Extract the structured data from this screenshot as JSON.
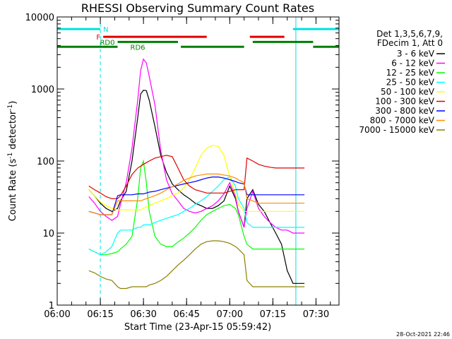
{
  "chart_data": {
    "type": "line",
    "title": "RHESSI Observing Summary Count Rates",
    "xlabel": "Start Time (23-Apr-15 05:59:42)",
    "ylabel": "Count Rate (s⁻¹ detector⁻¹)",
    "ylabel_parts": {
      "main": "Count Rate (s",
      "sup1": "-1",
      "mid": " detector",
      "sup2": "-1",
      "end": ")"
    },
    "y_scale": "log",
    "ylim": [
      1,
      10000
    ],
    "xlim_minutes": [
      0,
      98
    ],
    "x_ticks": [
      {
        "label": "06:00",
        "minute": 0
      },
      {
        "label": "06:15",
        "minute": 15
      },
      {
        "label": "06:30",
        "minute": 30
      },
      {
        "label": "06:45",
        "minute": 45
      },
      {
        "label": "07:00",
        "minute": 60
      },
      {
        "label": "07:15",
        "minute": 75
      },
      {
        "label": "07:30",
        "minute": 90
      }
    ],
    "y_ticks": [
      {
        "label": "1",
        "value": 1
      },
      {
        "label": "10",
        "value": 10
      },
      {
        "label": "100",
        "value": 100
      },
      {
        "label": "1000",
        "value": 1000
      },
      {
        "label": "10000",
        "value": 10000
      }
    ],
    "timestamp": "28-Oct-2021 22:46",
    "legend_header": [
      "Det 1,3,5,6,7,9,",
      "FDecim 1, Att 0"
    ],
    "legend_placement": "right",
    "flag_bars": [
      {
        "label": "N",
        "color": "#00e0e0",
        "level": 6800,
        "segments": [
          [
            0,
            15
          ],
          [
            82,
            98
          ]
        ]
      },
      {
        "label": "F",
        "color": "#e00000",
        "level": 5300,
        "segments": [
          [
            16,
            52
          ],
          [
            67,
            79
          ]
        ]
      },
      {
        "label": "RD0",
        "color": "#008000",
        "level": 4500,
        "segments": [
          [
            21,
            42
          ],
          [
            68,
            89
          ]
        ]
      },
      {
        "label": "RD6",
        "color": "#008000",
        "level": 3850,
        "segments": [
          [
            0,
            21
          ],
          [
            43,
            65
          ],
          [
            89,
            98
          ]
        ]
      }
    ],
    "vlines": [
      {
        "minute": 0,
        "style": "solid",
        "color": "#00e0e0"
      },
      {
        "minute": 15,
        "style": "dashed",
        "color": "#00e0e0"
      },
      {
        "minute": 83,
        "style": "solid",
        "color": "#00e0e0"
      },
      {
        "minute": 98,
        "style": "dashed",
        "color": "#00e0e0"
      }
    ],
    "series": [
      {
        "name": "3 - 6 keV",
        "color": "#000000",
        "x": [
          11,
          13,
          15,
          17,
          19,
          21,
          22,
          24,
          26,
          28,
          29,
          30,
          31,
          32,
          34,
          36,
          38,
          40,
          42,
          44,
          46,
          48,
          50,
          52,
          54,
          56,
          58,
          60,
          62,
          63,
          65,
          66,
          68,
          70,
          72,
          74,
          76,
          78,
          80,
          82,
          84,
          86
        ],
        "y": [
          40,
          33,
          26,
          22,
          20,
          22,
          28,
          38,
          100,
          400,
          850,
          960,
          950,
          700,
          300,
          120,
          70,
          48,
          40,
          34,
          30,
          26,
          24,
          22,
          22,
          24,
          28,
          45,
          30,
          20,
          12,
          30,
          40,
          25,
          20,
          14,
          10,
          7,
          3,
          2,
          2,
          2
        ]
      },
      {
        "name": "6 - 12 keV",
        "color": "#ff00ff",
        "x": [
          11,
          13,
          15,
          17,
          19,
          21,
          22,
          24,
          26,
          28,
          29,
          30,
          31,
          32,
          34,
          36,
          38,
          40,
          42,
          44,
          46,
          48,
          50,
          52,
          54,
          56,
          58,
          60,
          62,
          63,
          65,
          66,
          68,
          70,
          72,
          74,
          76,
          78,
          80,
          82,
          84,
          86
        ],
        "y": [
          32,
          26,
          20,
          17,
          15,
          17,
          25,
          50,
          150,
          700,
          1800,
          2600,
          2300,
          1500,
          600,
          140,
          55,
          35,
          28,
          22,
          20,
          19,
          20,
          22,
          24,
          28,
          35,
          50,
          32,
          20,
          12,
          22,
          38,
          22,
          17,
          14,
          12,
          11,
          11,
          10,
          10,
          10
        ]
      },
      {
        "name": "12 - 25 keV",
        "color": "#00ff00",
        "x": [
          11,
          13,
          15,
          17,
          19,
          21,
          22,
          24,
          26,
          28,
          29,
          30,
          31,
          32,
          34,
          36,
          38,
          40,
          42,
          44,
          46,
          48,
          50,
          52,
          54,
          56,
          58,
          60,
          62,
          63,
          65,
          66,
          68,
          70,
          72,
          74,
          76,
          78,
          80,
          82,
          84,
          86
        ],
        "y": [
          6,
          5.5,
          5,
          5,
          5.2,
          5.5,
          6,
          7,
          9,
          30,
          80,
          100,
          50,
          20,
          9,
          7,
          6.5,
          6.5,
          7.5,
          8.5,
          10,
          12,
          15,
          18,
          20,
          22,
          24,
          25,
          22,
          18,
          9,
          7,
          6,
          6,
          6,
          6,
          6,
          6,
          6,
          6,
          6,
          6
        ]
      },
      {
        "name": "25 - 50 keV",
        "color": "#00ffff",
        "x": [
          11,
          13,
          15,
          17,
          19,
          21,
          22,
          24,
          26,
          28,
          29,
          30,
          31,
          32,
          34,
          36,
          38,
          40,
          42,
          44,
          46,
          48,
          50,
          52,
          54,
          56,
          58,
          60,
          62,
          63,
          65,
          66,
          68,
          70,
          72,
          74,
          76,
          78,
          80,
          82,
          84,
          86
        ],
        "y": [
          6,
          5.5,
          5,
          5.5,
          6.5,
          10,
          11,
          11,
          11,
          12,
          12,
          13,
          13,
          13,
          14,
          15,
          16,
          17,
          18,
          20,
          22,
          25,
          28,
          32,
          38,
          45,
          55,
          60,
          45,
          30,
          22,
          14,
          12,
          12,
          12,
          12,
          12,
          12,
          12,
          12,
          12,
          12
        ]
      },
      {
        "name": "50 - 100 keV",
        "color": "#ffff00",
        "x": [
          11,
          13,
          15,
          17,
          19,
          21,
          22,
          24,
          26,
          28,
          29,
          30,
          31,
          32,
          34,
          36,
          38,
          40,
          42,
          44,
          46,
          48,
          50,
          52,
          54,
          56,
          58,
          60,
          62,
          63,
          65,
          66,
          68,
          70,
          72,
          74,
          76,
          78,
          80,
          82,
          84,
          86
        ],
        "y": [
          40,
          33,
          27,
          24,
          22,
          21,
          21,
          21,
          21,
          21,
          21,
          22,
          23,
          24,
          26,
          28,
          30,
          33,
          36,
          42,
          55,
          80,
          120,
          150,
          165,
          160,
          120,
          60,
          35,
          25,
          20,
          20,
          20,
          20,
          20,
          20,
          20,
          20,
          20,
          20,
          20,
          20
        ]
      },
      {
        "name": "100 - 300 keV",
        "color": "#e00000",
        "x": [
          11,
          13,
          15,
          17,
          19,
          21,
          22,
          24,
          26,
          28,
          29,
          30,
          31,
          32,
          34,
          36,
          38,
          40,
          42,
          44,
          46,
          48,
          50,
          52,
          54,
          56,
          58,
          60,
          62,
          63,
          65,
          66,
          68,
          70,
          72,
          74,
          76,
          78,
          80,
          82,
          84,
          86
        ],
        "y": [
          45,
          40,
          36,
          32,
          30,
          30,
          33,
          45,
          65,
          80,
          85,
          90,
          95,
          100,
          110,
          115,
          120,
          115,
          80,
          55,
          45,
          40,
          38,
          36,
          36,
          36,
          36,
          38,
          40,
          40,
          40,
          110,
          100,
          90,
          85,
          82,
          80,
          80,
          80,
          80,
          80,
          80
        ]
      },
      {
        "name": "300 - 800 keV",
        "color": "#0000ff",
        "x": [
          11,
          13,
          15,
          17,
          19,
          21,
          22,
          24,
          26,
          28,
          29,
          30,
          31,
          32,
          34,
          36,
          38,
          40,
          42,
          44,
          46,
          48,
          50,
          52,
          54,
          56,
          58,
          60,
          62,
          63,
          65,
          66,
          68,
          70,
          72,
          74,
          76,
          78,
          80,
          82,
          84,
          86
        ],
        "y": [
          20,
          19,
          18,
          18,
          18,
          33,
          34,
          34,
          34,
          35,
          35,
          35,
          36,
          37,
          38,
          40,
          42,
          44,
          46,
          48,
          50,
          52,
          55,
          58,
          60,
          60,
          58,
          55,
          52,
          50,
          48,
          34,
          34,
          34,
          34,
          34,
          34,
          34,
          34,
          34,
          34,
          34
        ]
      },
      {
        "name": "800 - 7000 keV",
        "color": "#ff8c00",
        "x": [
          11,
          13,
          15,
          17,
          19,
          21,
          22,
          24,
          26,
          28,
          29,
          30,
          31,
          32,
          34,
          36,
          38,
          40,
          42,
          44,
          46,
          48,
          50,
          52,
          54,
          56,
          58,
          60,
          62,
          63,
          65,
          66,
          68,
          70,
          72,
          74,
          76,
          78,
          80,
          82,
          84,
          86
        ],
        "y": [
          20,
          19,
          18,
          18,
          18,
          28,
          28,
          28,
          28,
          28,
          28,
          29,
          30,
          31,
          33,
          36,
          40,
          44,
          48,
          54,
          58,
          62,
          64,
          66,
          66,
          66,
          64,
          62,
          58,
          55,
          50,
          30,
          28,
          26,
          26,
          26,
          26,
          26,
          26,
          26,
          26,
          26
        ]
      },
      {
        "name": "7000 - 15000 keV",
        "color": "#8b8000",
        "x": [
          11,
          13,
          15,
          17,
          19,
          21,
          22,
          24,
          26,
          28,
          29,
          30,
          31,
          32,
          34,
          36,
          38,
          40,
          42,
          44,
          46,
          48,
          50,
          52,
          54,
          56,
          58,
          60,
          62,
          63,
          65,
          66,
          68,
          70,
          72,
          74,
          76,
          78,
          80,
          82,
          84,
          86
        ],
        "y": [
          3,
          2.8,
          2.5,
          2.3,
          2.2,
          1.8,
          1.7,
          1.7,
          1.8,
          1.8,
          1.8,
          1.8,
          1.8,
          1.9,
          2,
          2.2,
          2.5,
          3,
          3.6,
          4.2,
          5,
          6,
          7,
          7.6,
          7.8,
          7.8,
          7.6,
          7.2,
          6.5,
          6,
          5,
          2.2,
          1.8,
          1.8,
          1.8,
          1.8,
          1.8,
          1.8,
          1.8,
          1.8,
          1.8,
          1.8
        ]
      }
    ]
  }
}
